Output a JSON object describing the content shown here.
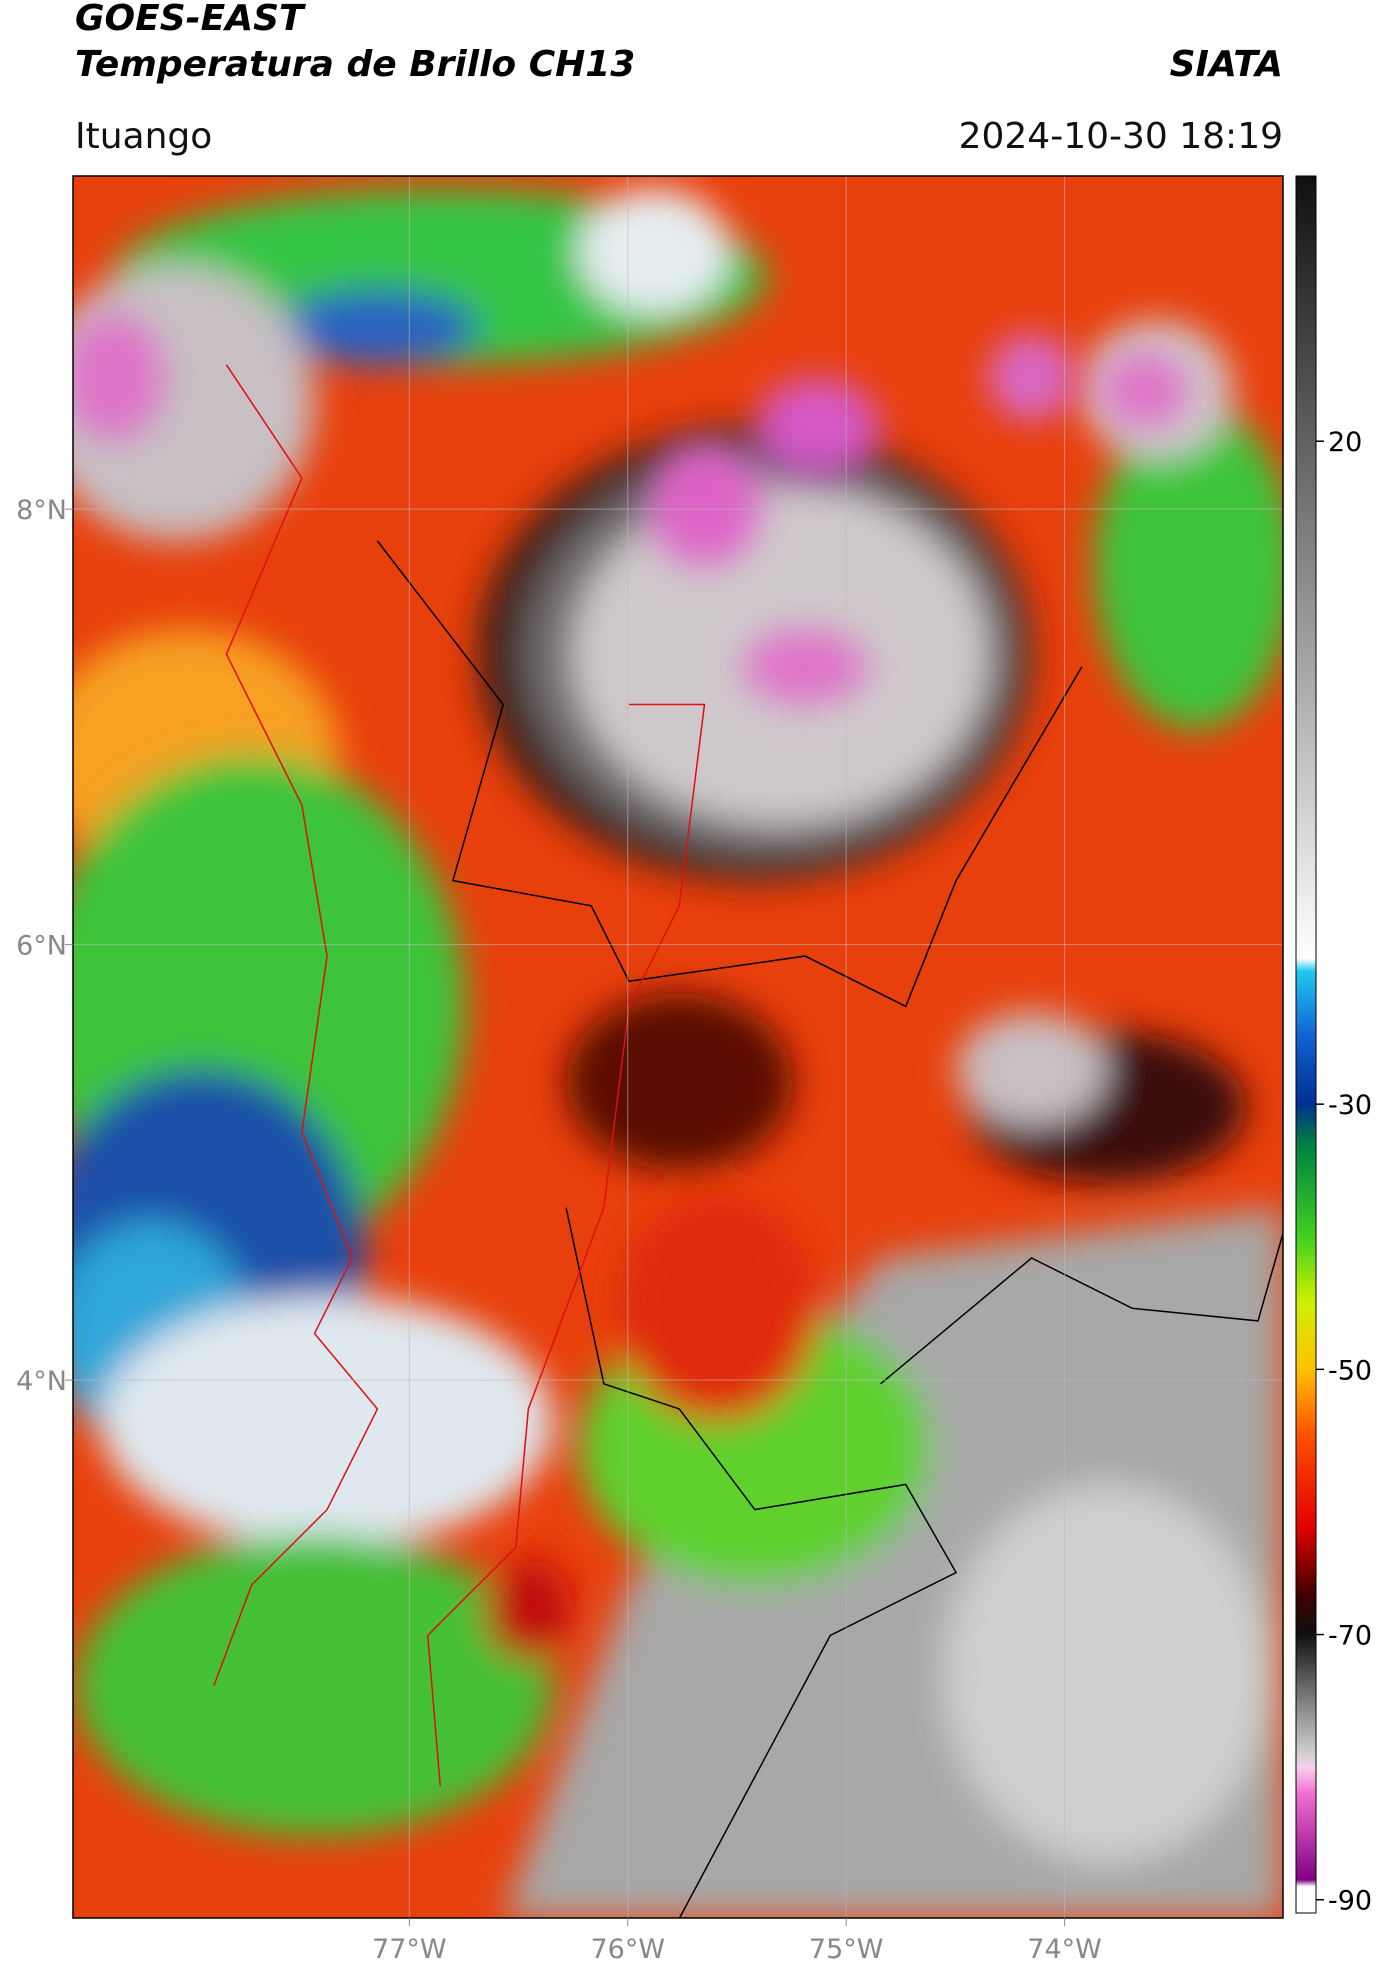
{
  "chart_data": {
    "type": "map",
    "title": "GOES-EAST",
    "subtitle": "Temperatura de Brillo CH13",
    "source": "SIATA",
    "region": "Ituango",
    "datetime": "2024-10-30 18:19",
    "xlim": [
      -78.54,
      -73.0
    ],
    "ylim": [
      1.53,
      9.53
    ],
    "xticks": [
      {
        "value": -77,
        "label": "77°W"
      },
      {
        "value": -76,
        "label": "76°W"
      },
      {
        "value": -75,
        "label": "75°W"
      },
      {
        "value": -74,
        "label": "74°W"
      }
    ],
    "yticks": [
      {
        "value": 8,
        "label": "8°N"
      },
      {
        "value": 6,
        "label": "6°N"
      },
      {
        "value": 4,
        "label": "4°N"
      }
    ],
    "grid": true,
    "colorbar": {
      "clim": [
        -91,
        40
      ],
      "ticks": [
        20,
        -30,
        -50,
        -70,
        -90
      ],
      "stops": [
        {
          "value": -91,
          "color": "#ffffff"
        },
        {
          "value": -89,
          "color": "#ffffff"
        },
        {
          "value": -88.5,
          "color": "#800080"
        },
        {
          "value": -82,
          "color": "#f070d0"
        },
        {
          "value": -80,
          "color": "#f8d0f0"
        },
        {
          "value": -79,
          "color": "#d0d0d0"
        },
        {
          "value": -75,
          "color": "#808080"
        },
        {
          "value": -70,
          "color": "#101010"
        },
        {
          "value": -67,
          "color": "#400000"
        },
        {
          "value": -62,
          "color": "#e00000"
        },
        {
          "value": -55,
          "color": "#ff5000"
        },
        {
          "value": -50,
          "color": "#ffc000"
        },
        {
          "value": -45,
          "color": "#d0f000"
        },
        {
          "value": -40,
          "color": "#40d020"
        },
        {
          "value": -33,
          "color": "#008040"
        },
        {
          "value": -30,
          "color": "#003090"
        },
        {
          "value": -25,
          "color": "#1060d0"
        },
        {
          "value": -20,
          "color": "#20c8f0"
        },
        {
          "value": -19,
          "color": "#ffffff"
        },
        {
          "value": 40,
          "color": "#101010"
        }
      ]
    }
  }
}
